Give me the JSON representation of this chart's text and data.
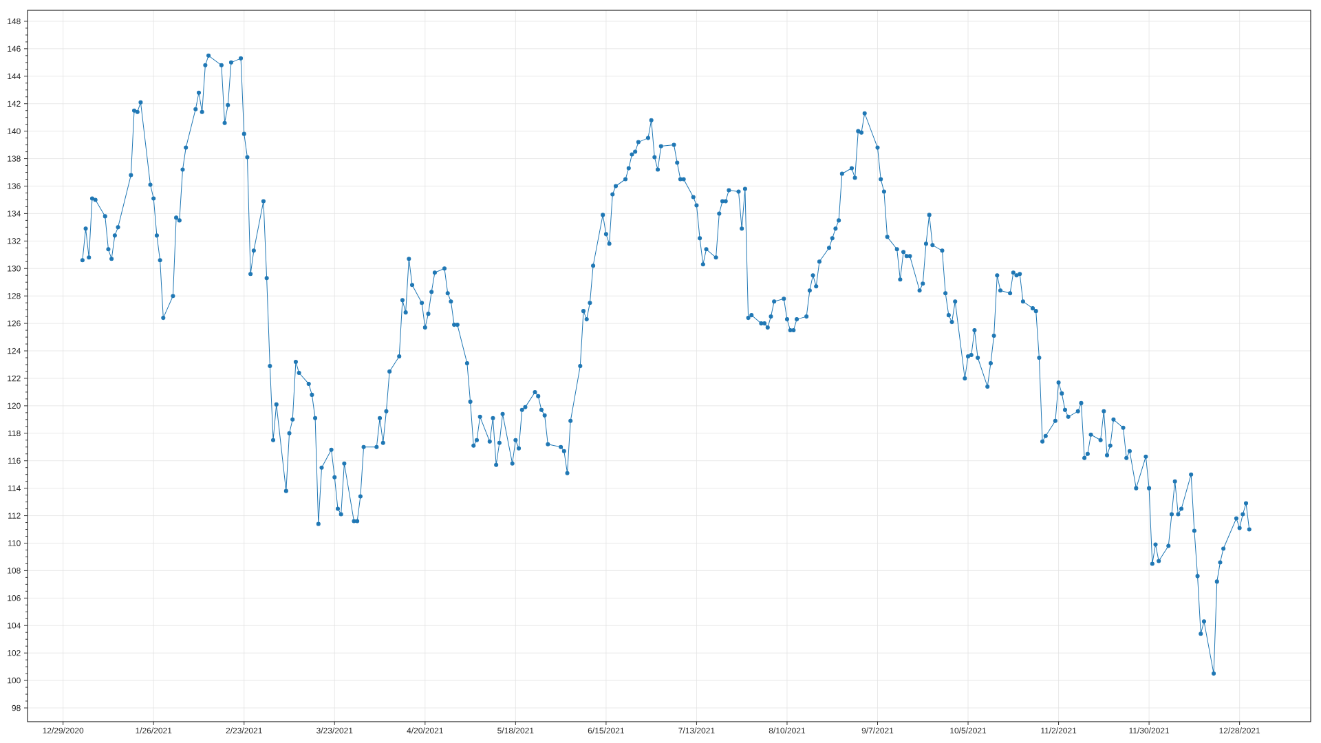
{
  "chart_data": {
    "type": "line",
    "color": "#1f77b4",
    "marker": "circle",
    "line_style": "solid",
    "grid": true,
    "xlim": [
      "2020-12-18",
      "2022-01-19"
    ],
    "ylim": [
      97,
      148.8
    ],
    "xticks": [
      {
        "value": "2020-12-29",
        "label": "12/29/2020"
      },
      {
        "value": "2021-01-26",
        "label": "1/26/2021"
      },
      {
        "value": "2021-02-23",
        "label": "2/23/2021"
      },
      {
        "value": "2021-03-23",
        "label": "3/23/2021"
      },
      {
        "value": "2021-04-20",
        "label": "4/20/2021"
      },
      {
        "value": "2021-05-18",
        "label": "5/18/2021"
      },
      {
        "value": "2021-06-15",
        "label": "6/15/2021"
      },
      {
        "value": "2021-07-13",
        "label": "7/13/2021"
      },
      {
        "value": "2021-08-10",
        "label": "8/10/2021"
      },
      {
        "value": "2021-09-07",
        "label": "9/7/2021"
      },
      {
        "value": "2021-10-05",
        "label": "10/5/2021"
      },
      {
        "value": "2021-11-02",
        "label": "11/2/2021"
      },
      {
        "value": "2021-11-30",
        "label": "11/30/2021"
      },
      {
        "value": "2021-12-28",
        "label": "12/28/2021"
      }
    ],
    "yticks": [
      98,
      100,
      102,
      104,
      106,
      108,
      110,
      112,
      114,
      116,
      118,
      120,
      122,
      124,
      126,
      128,
      130,
      132,
      134,
      136,
      138,
      140,
      142,
      144,
      146,
      148
    ],
    "x": [
      "2021-01-04",
      "2021-01-05",
      "2021-01-06",
      "2021-01-07",
      "2021-01-08",
      "2021-01-11",
      "2021-01-12",
      "2021-01-13",
      "2021-01-14",
      "2021-01-15",
      "2021-01-19",
      "2021-01-20",
      "2021-01-21",
      "2021-01-22",
      "2021-01-25",
      "2021-01-26",
      "2021-01-27",
      "2021-01-28",
      "2021-01-29",
      "2021-02-01",
      "2021-02-02",
      "2021-02-03",
      "2021-02-04",
      "2021-02-05",
      "2021-02-08",
      "2021-02-09",
      "2021-02-10",
      "2021-02-11",
      "2021-02-12",
      "2021-02-16",
      "2021-02-17",
      "2021-02-18",
      "2021-02-19",
      "2021-02-22",
      "2021-02-23",
      "2021-02-24",
      "2021-02-25",
      "2021-02-26",
      "2021-03-01",
      "2021-03-02",
      "2021-03-03",
      "2021-03-04",
      "2021-03-05",
      "2021-03-08",
      "2021-03-09",
      "2021-03-10",
      "2021-03-11",
      "2021-03-12",
      "2021-03-15",
      "2021-03-16",
      "2021-03-17",
      "2021-03-18",
      "2021-03-19",
      "2021-03-22",
      "2021-03-23",
      "2021-03-24",
      "2021-03-25",
      "2021-03-26",
      "2021-03-29",
      "2021-03-30",
      "2021-03-31",
      "2021-04-01",
      "2021-04-05",
      "2021-04-06",
      "2021-04-07",
      "2021-04-08",
      "2021-04-09",
      "2021-04-12",
      "2021-04-13",
      "2021-04-14",
      "2021-04-15",
      "2021-04-16",
      "2021-04-19",
      "2021-04-20",
      "2021-04-21",
      "2021-04-22",
      "2021-04-23",
      "2021-04-26",
      "2021-04-27",
      "2021-04-28",
      "2021-04-29",
      "2021-04-30",
      "2021-05-03",
      "2021-05-04",
      "2021-05-05",
      "2021-05-06",
      "2021-05-07",
      "2021-05-10",
      "2021-05-11",
      "2021-05-12",
      "2021-05-13",
      "2021-05-14",
      "2021-05-17",
      "2021-05-18",
      "2021-05-19",
      "2021-05-20",
      "2021-05-21",
      "2021-05-24",
      "2021-05-25",
      "2021-05-26",
      "2021-05-27",
      "2021-05-28",
      "2021-06-01",
      "2021-06-02",
      "2021-06-03",
      "2021-06-04",
      "2021-06-07",
      "2021-06-08",
      "2021-06-09",
      "2021-06-10",
      "2021-06-11",
      "2021-06-14",
      "2021-06-15",
      "2021-06-16",
      "2021-06-17",
      "2021-06-18",
      "2021-06-21",
      "2021-06-22",
      "2021-06-23",
      "2021-06-24",
      "2021-06-25",
      "2021-06-28",
      "2021-06-29",
      "2021-06-30",
      "2021-07-01",
      "2021-07-02",
      "2021-07-06",
      "2021-07-07",
      "2021-07-08",
      "2021-07-09",
      "2021-07-12",
      "2021-07-13",
      "2021-07-14",
      "2021-07-15",
      "2021-07-16",
      "2021-07-19",
      "2021-07-20",
      "2021-07-21",
      "2021-07-22",
      "2021-07-23",
      "2021-07-26",
      "2021-07-27",
      "2021-07-28",
      "2021-07-29",
      "2021-07-30",
      "2021-08-02",
      "2021-08-03",
      "2021-08-04",
      "2021-08-05",
      "2021-08-06",
      "2021-08-09",
      "2021-08-10",
      "2021-08-11",
      "2021-08-12",
      "2021-08-13",
      "2021-08-16",
      "2021-08-17",
      "2021-08-18",
      "2021-08-19",
      "2021-08-20",
      "2021-08-23",
      "2021-08-24",
      "2021-08-25",
      "2021-08-26",
      "2021-08-27",
      "2021-08-30",
      "2021-08-31",
      "2021-09-01",
      "2021-09-02",
      "2021-09-03",
      "2021-09-07",
      "2021-09-08",
      "2021-09-09",
      "2021-09-10",
      "2021-09-13",
      "2021-09-14",
      "2021-09-15",
      "2021-09-16",
      "2021-09-17",
      "2021-09-20",
      "2021-09-21",
      "2021-09-22",
      "2021-09-23",
      "2021-09-24",
      "2021-09-27",
      "2021-09-28",
      "2021-09-29",
      "2021-09-30",
      "2021-10-01",
      "2021-10-04",
      "2021-10-05",
      "2021-10-06",
      "2021-10-07",
      "2021-10-08",
      "2021-10-11",
      "2021-10-12",
      "2021-10-13",
      "2021-10-14",
      "2021-10-15",
      "2021-10-18",
      "2021-10-19",
      "2021-10-20",
      "2021-10-21",
      "2021-10-22",
      "2021-10-25",
      "2021-10-26",
      "2021-10-27",
      "2021-10-28",
      "2021-10-29",
      "2021-11-01",
      "2021-11-02",
      "2021-11-03",
      "2021-11-04",
      "2021-11-05",
      "2021-11-08",
      "2021-11-09",
      "2021-11-10",
      "2021-11-11",
      "2021-11-12",
      "2021-11-15",
      "2021-11-16",
      "2021-11-17",
      "2021-11-18",
      "2021-11-19",
      "2021-11-22",
      "2021-11-23",
      "2021-11-24",
      "2021-11-26",
      "2021-11-29",
      "2021-11-30",
      "2021-12-01",
      "2021-12-02",
      "2021-12-03",
      "2021-12-06",
      "2021-12-07",
      "2021-12-08",
      "2021-12-09",
      "2021-12-10",
      "2021-12-13",
      "2021-12-14",
      "2021-12-15",
      "2021-12-16",
      "2021-12-17",
      "2021-12-20",
      "2021-12-21",
      "2021-12-22",
      "2021-12-23",
      "2021-12-27",
      "2021-12-28",
      "2021-12-29",
      "2021-12-30",
      "2021-12-31"
    ],
    "values": [
      130.6,
      132.9,
      130.8,
      135.1,
      135.0,
      133.8,
      131.4,
      130.7,
      132.4,
      133.0,
      136.8,
      141.5,
      141.4,
      142.1,
      136.1,
      135.1,
      132.4,
      130.6,
      126.4,
      128.0,
      133.7,
      133.5,
      137.2,
      138.8,
      141.6,
      142.8,
      141.4,
      144.8,
      145.5,
      144.8,
      140.6,
      141.9,
      145.0,
      145.3,
      139.8,
      138.1,
      129.6,
      131.3,
      134.9,
      129.3,
      122.9,
      117.5,
      120.1,
      113.8,
      118.0,
      119.0,
      123.2,
      122.4,
      121.6,
      120.8,
      119.1,
      111.4,
      115.5,
      116.8,
      114.8,
      112.5,
      112.1,
      115.8,
      111.6,
      111.6,
      113.4,
      117.0,
      117.0,
      119.1,
      117.3,
      119.6,
      122.5,
      123.6,
      127.7,
      126.8,
      130.7,
      128.8,
      127.5,
      125.7,
      126.7,
      128.3,
      129.7,
      130.0,
      128.2,
      127.6,
      125.9,
      125.9,
      123.1,
      120.3,
      117.1,
      117.5,
      119.2,
      117.4,
      119.1,
      115.7,
      117.3,
      119.4,
      115.8,
      117.5,
      116.9,
      119.7,
      119.9,
      121.0,
      120.7,
      119.7,
      119.3,
      117.2,
      117.0,
      116.7,
      115.1,
      118.9,
      122.9,
      126.9,
      126.3,
      127.5,
      130.2,
      133.9,
      132.5,
      131.8,
      135.4,
      136.0,
      136.5,
      137.3,
      138.3,
      138.5,
      139.2,
      139.5,
      140.8,
      138.1,
      137.2,
      138.9,
      139.0,
      137.7,
      136.5,
      136.5,
      135.2,
      134.6,
      132.2,
      130.3,
      131.4,
      130.8,
      134.0,
      134.9,
      134.9,
      135.7,
      135.6,
      132.9,
      135.8,
      126.4,
      126.6,
      126.0,
      126.0,
      125.7,
      126.5,
      127.6,
      127.8,
      126.3,
      125.5,
      125.5,
      126.3,
      126.5,
      128.4,
      129.5,
      128.7,
      130.5,
      131.5,
      132.2,
      132.9,
      133.5,
      136.9,
      137.3,
      136.6,
      140.0,
      139.9,
      141.3,
      138.8,
      136.5,
      135.6,
      132.3,
      131.4,
      129.2,
      131.2,
      130.9,
      130.9,
      128.4,
      128.9,
      131.8,
      133.9,
      131.7,
      131.3,
      128.2,
      126.6,
      126.1,
      127.6,
      122.0,
      123.6,
      123.7,
      125.5,
      123.5,
      121.4,
      123.1,
      125.1,
      129.5,
      128.4,
      128.2,
      129.7,
      129.5,
      129.6,
      127.6,
      127.1,
      126.9,
      123.5,
      117.4,
      117.8,
      118.9,
      121.7,
      120.9,
      119.7,
      119.2,
      119.6,
      120.2,
      116.2,
      116.5,
      117.9,
      117.5,
      119.6,
      116.4,
      117.1,
      119.0,
      118.4,
      116.2,
      116.7,
      114.0,
      116.3,
      114.0,
      108.5,
      109.9,
      108.7,
      109.8,
      112.1,
      114.5,
      112.1,
      112.5,
      115.0,
      110.9,
      107.6,
      103.4,
      104.3,
      100.5,
      107.2,
      108.6,
      109.6,
      111.8,
      111.1,
      112.1,
      112.9,
      111.0
    ]
  }
}
